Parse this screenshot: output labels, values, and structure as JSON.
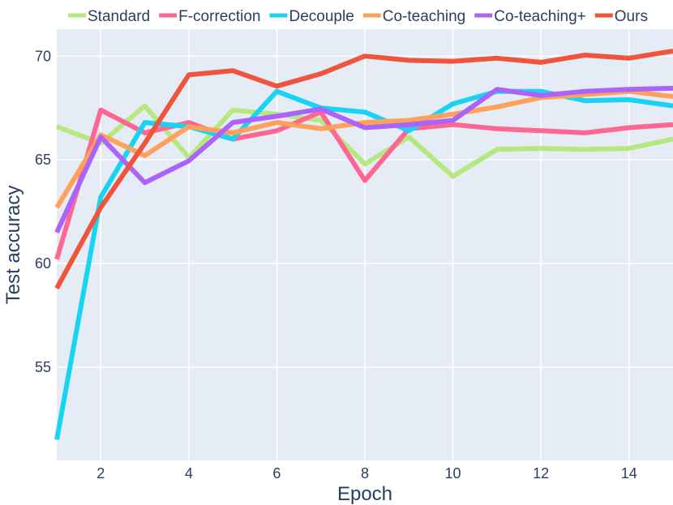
{
  "chart_data": {
    "type": "line",
    "xlabel": "Epoch",
    "ylabel": "Test accuracy",
    "xlim": [
      1,
      15
    ],
    "ylim": [
      50.5,
      71.3
    ],
    "x_ticks": [
      2,
      4,
      6,
      8,
      10,
      12,
      14
    ],
    "y_ticks": [
      55,
      60,
      65,
      70
    ],
    "grid": true,
    "legend_position": "top",
    "background": "#e5ecf6",
    "x": [
      1,
      2,
      3,
      4,
      5,
      6,
      7,
      8,
      9,
      10,
      11,
      12,
      13,
      14,
      15
    ],
    "series": [
      {
        "name": "Standard",
        "color": "#b6e880",
        "values": [
          66.6,
          65.8,
          67.6,
          65.1,
          67.4,
          67.2,
          66.9,
          64.8,
          66.1,
          64.2,
          65.5,
          65.55,
          65.5,
          65.55,
          66.0
        ]
      },
      {
        "name": "F-correction",
        "color": "#ff6692",
        "values": [
          60.2,
          67.4,
          66.3,
          66.8,
          66.0,
          66.4,
          67.3,
          64.0,
          66.5,
          66.7,
          66.5,
          66.4,
          66.3,
          66.55,
          66.7
        ]
      },
      {
        "name": "Decouple",
        "color": "#19d3f3",
        "values": [
          51.5,
          63.2,
          66.8,
          66.6,
          66.0,
          68.3,
          67.5,
          67.3,
          66.4,
          67.7,
          68.3,
          68.3,
          67.85,
          67.9,
          67.6
        ]
      },
      {
        "name": "Co-teaching",
        "color": "#ffa15a",
        "values": [
          62.7,
          66.2,
          65.2,
          66.6,
          66.3,
          66.8,
          66.5,
          66.8,
          66.9,
          67.2,
          67.55,
          68.0,
          68.15,
          68.3,
          68.05
        ]
      },
      {
        "name": "Co-teaching+",
        "color": "#ab63fa",
        "values": [
          61.5,
          66.1,
          63.9,
          64.95,
          66.8,
          67.1,
          67.45,
          66.55,
          66.7,
          66.9,
          68.4,
          68.1,
          68.3,
          68.4,
          68.45
        ]
      },
      {
        "name": "Ours",
        "color": "#ef553b",
        "values": [
          58.8,
          62.7,
          65.8,
          69.1,
          69.3,
          68.55,
          69.15,
          70.0,
          69.8,
          69.75,
          69.9,
          69.7,
          70.05,
          69.9,
          70.25
        ]
      }
    ]
  }
}
